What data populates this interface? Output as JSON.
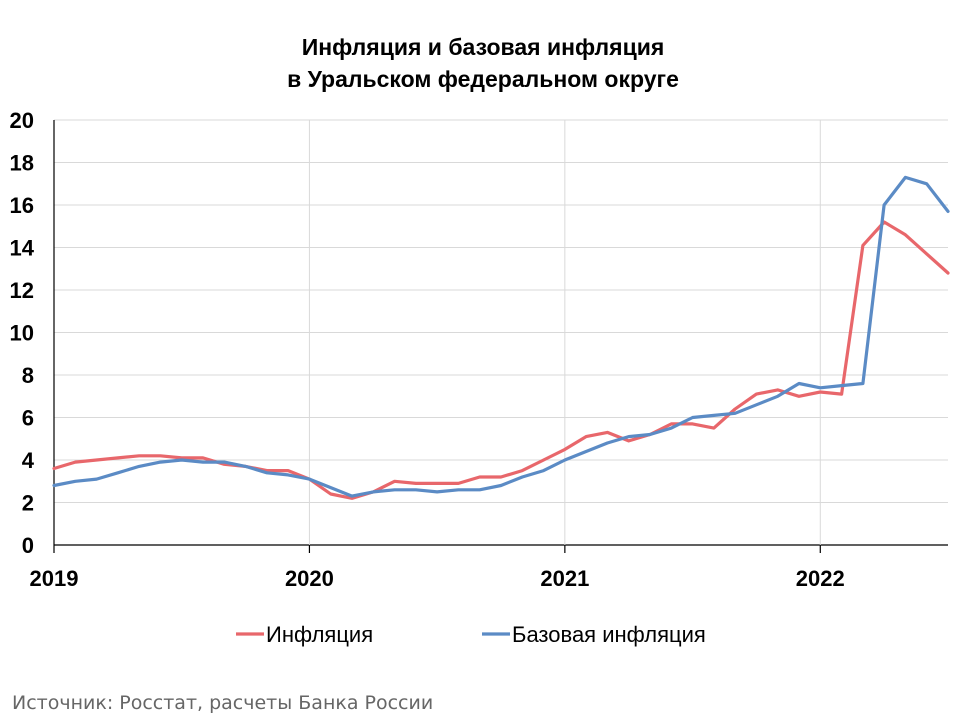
{
  "chart_data": {
    "type": "line",
    "title_line1": "Инфляция и базовая инфляция",
    "title_line2": "в  Уральском федеральном округе",
    "xlabel": "",
    "ylabel": "",
    "ylim": [
      0,
      20
    ],
    "y_ticks": [
      "0",
      "2",
      "4",
      "6",
      "8",
      "10",
      "12",
      "14",
      "16",
      "18",
      "20"
    ],
    "x_range": [
      "2019-01",
      "2022-07"
    ],
    "x_ticks": [
      "2019",
      "2020",
      "2021",
      "2022"
    ],
    "grid": true,
    "legend_position": "bottom",
    "x": [
      "2019-01",
      "2019-02",
      "2019-03",
      "2019-04",
      "2019-05",
      "2019-06",
      "2019-07",
      "2019-08",
      "2019-09",
      "2019-10",
      "2019-11",
      "2019-12",
      "2020-01",
      "2020-02",
      "2020-03",
      "2020-04",
      "2020-05",
      "2020-06",
      "2020-07",
      "2020-08",
      "2020-09",
      "2020-10",
      "2020-11",
      "2020-12",
      "2021-01",
      "2021-02",
      "2021-03",
      "2021-04",
      "2021-05",
      "2021-06",
      "2021-07",
      "2021-08",
      "2021-09",
      "2021-10",
      "2021-11",
      "2021-12",
      "2022-01",
      "2022-02",
      "2022-03",
      "2022-04",
      "2022-05",
      "2022-06",
      "2022-07"
    ],
    "series": [
      {
        "name": "Инфляция",
        "color": "#E8676B",
        "values": [
          3.6,
          3.9,
          4.0,
          4.1,
          4.2,
          4.2,
          4.1,
          4.1,
          3.8,
          3.7,
          3.5,
          3.5,
          3.1,
          2.4,
          2.2,
          2.5,
          3.0,
          2.9,
          2.9,
          2.9,
          3.2,
          3.2,
          3.5,
          4.0,
          4.5,
          5.1,
          5.3,
          4.9,
          5.2,
          5.7,
          5.7,
          5.5,
          6.4,
          7.1,
          7.3,
          7.0,
          7.2,
          7.1,
          14.1,
          15.2,
          14.6,
          13.7,
          12.8
        ]
      },
      {
        "name": "Базовая инфляция",
        "color": "#5B8BC5",
        "values": [
          2.8,
          3.0,
          3.1,
          3.4,
          3.7,
          3.9,
          4.0,
          3.9,
          3.9,
          3.7,
          3.4,
          3.3,
          3.1,
          2.7,
          2.3,
          2.5,
          2.6,
          2.6,
          2.5,
          2.6,
          2.6,
          2.8,
          3.2,
          3.5,
          4.0,
          4.4,
          4.8,
          5.1,
          5.2,
          5.5,
          6.0,
          6.1,
          6.2,
          6.6,
          7.0,
          7.6,
          7.4,
          7.5,
          7.6,
          16.0,
          17.3,
          17.0,
          15.7
        ]
      }
    ]
  },
  "source_text": "Источник: Росстат, расчеты Банка России"
}
